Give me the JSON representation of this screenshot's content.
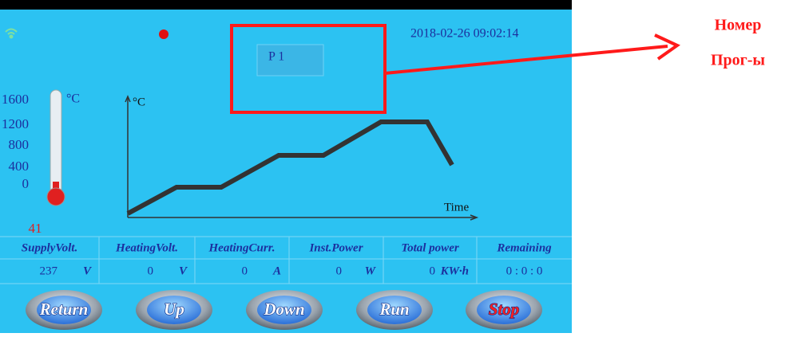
{
  "status": {
    "date": "2018-02-26 09:02:14",
    "program": "P 1"
  },
  "thermometer": {
    "unit": "°C",
    "scale": [
      "1600",
      "1200",
      "800",
      "400",
      "0"
    ],
    "reading": "41"
  },
  "profile": {
    "y_label": "°C",
    "x_label": "Time"
  },
  "table": {
    "headers": [
      "SupplyVolt.",
      "HeatingVolt.",
      "HeatingCurr.",
      "Inst.Power",
      "Total power",
      "Remaining"
    ],
    "values": [
      "237",
      "0",
      "0",
      "0",
      "0",
      "0 : 0 : 0"
    ],
    "units": [
      "V",
      "V",
      "A",
      "W",
      "KW·h",
      ""
    ]
  },
  "buttons": [
    "Return",
    "Up",
    "Down",
    "Run",
    "Stop"
  ],
  "annotation": {
    "lines": [
      "Номер",
      "Прог-ы"
    ]
  }
}
